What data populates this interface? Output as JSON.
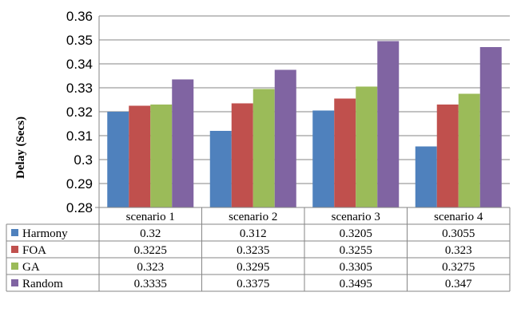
{
  "chart_data": {
    "type": "bar",
    "ylabel": "Delay (Secs)",
    "ylim": [
      0.28,
      0.36
    ],
    "ytick_labels": [
      "0.28",
      "0.29",
      "0.3",
      "0.31",
      "0.32",
      "0.33",
      "0.34",
      "0.35",
      "0.36"
    ],
    "grid": true,
    "legend": "data-table",
    "categories": [
      "scenario 1",
      "scenario 2",
      "scenario 3",
      "scenario 4"
    ],
    "series": [
      {
        "name": "Harmony",
        "color": "#4F81BD",
        "values": [
          0.32,
          0.312,
          0.3205,
          0.3055
        ],
        "labels": [
          "0.32",
          "0.312",
          "0.3205",
          "0.3055"
        ]
      },
      {
        "name": "FOA",
        "color": "#C0504D",
        "values": [
          0.3225,
          0.3235,
          0.3255,
          0.323
        ],
        "labels": [
          "0.3225",
          "0.3235",
          "0.3255",
          "0.323"
        ]
      },
      {
        "name": "GA",
        "color": "#9BBB59",
        "values": [
          0.323,
          0.3295,
          0.3305,
          0.3275
        ],
        "labels": [
          "0.323",
          "0.3295",
          "0.3305",
          "0.3275"
        ]
      },
      {
        "name": "Random",
        "color": "#8064A2",
        "values": [
          0.3335,
          0.3375,
          0.3495,
          0.347
        ],
        "labels": [
          "0.3335",
          "0.3375",
          "0.3495",
          "0.347"
        ]
      }
    ]
  }
}
